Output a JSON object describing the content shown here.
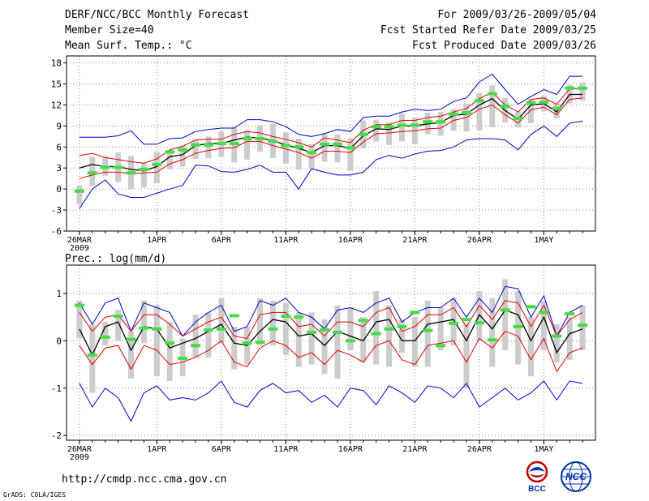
{
  "header": {
    "title": "DERF/NCC/BCC Monthly Forecast",
    "member_size": "Member Size=40",
    "variable": "Mean Surf. Temp.: °C",
    "period": "For 2009/03/26-2009/05/04",
    "refer_date": "Fcst Started Refer Date 2009/03/25",
    "produced_date": "Fcst Produced Date 2009/03/26"
  },
  "footer": {
    "url": "http://cmdp.ncc.cma.gov.cn",
    "credit": "GrADS: COLA/IGES",
    "logo_left": "BCC",
    "logo_right": "NCC"
  },
  "colors": {
    "max_min": "#0000cc",
    "mean": "#000000",
    "spread": "#e00000",
    "median": "#44dd44",
    "box": "#cccccc"
  },
  "chart_data": [
    {
      "type": "line",
      "title": "Mean Surf. Temp.: °C",
      "xlabel": "",
      "ylabel": "",
      "x": [
        1,
        2,
        3,
        4,
        5,
        6,
        7,
        8,
        9,
        10,
        11,
        12,
        13,
        14,
        15,
        16,
        17,
        18,
        19,
        20,
        21,
        22,
        23,
        24,
        25,
        26,
        27,
        28,
        29,
        30,
        31,
        32,
        33,
        34,
        35,
        36,
        37,
        38,
        39,
        40
      ],
      "xlim": [
        0,
        41
      ],
      "ylim": [
        -6,
        19
      ],
      "yticks": [
        -6,
        -3,
        0,
        3,
        6,
        9,
        12,
        15,
        18
      ],
      "tick_labels": [
        {
          "x": 1,
          "label": "26MAR"
        },
        {
          "x": 7,
          "label": "1APR"
        },
        {
          "x": 12,
          "label": "6APR"
        },
        {
          "x": 17,
          "label": "11APR"
        },
        {
          "x": 22,
          "label": "16APR"
        },
        {
          "x": 27,
          "label": "21APR"
        },
        {
          "x": 32,
          "label": "26APR"
        },
        {
          "x": 37,
          "label": "1MAY"
        }
      ],
      "year_label": "2009",
      "series": [
        {
          "name": "max",
          "color": "#0000cc",
          "values": [
            7.4,
            7.4,
            7.4,
            7.6,
            8.3,
            6.4,
            6.4,
            7.2,
            7.3,
            8.2,
            8.5,
            8.7,
            8.7,
            9.9,
            9.9,
            9.6,
            8.9,
            7.8,
            7.5,
            7.9,
            8.5,
            8.2,
            10.2,
            10.4,
            10.4,
            11.0,
            11.4,
            11.2,
            11.4,
            12.5,
            13.0,
            15.3,
            16.4,
            14.2,
            12.1,
            13.2,
            14.2,
            13.5,
            16.1,
            16.1
          ]
        },
        {
          "name": "min",
          "color": "#0000cc",
          "values": [
            -2.8,
            0.0,
            1.3,
            -0.7,
            -1.2,
            -1.2,
            -0.6,
            0.0,
            0.5,
            3.4,
            3.3,
            2.5,
            2.4,
            2.8,
            3.4,
            2.4,
            2.4,
            0.0,
            2.9,
            2.4,
            2.0,
            2.0,
            2.4,
            4.2,
            4.8,
            4.4,
            5.0,
            5.4,
            5.5,
            6.0,
            7.0,
            7.2,
            7.2,
            7.0,
            5.6,
            7.8,
            9.0,
            7.5,
            9.4,
            9.7
          ]
        },
        {
          "name": "mean_plus_std",
          "color": "#e00000",
          "values": [
            4.8,
            5.1,
            4.5,
            4.2,
            3.9,
            3.7,
            4.3,
            5.6,
            6.1,
            7.0,
            7.1,
            7.1,
            7.8,
            8.2,
            8.0,
            7.5,
            7.1,
            6.6,
            6.0,
            7.3,
            7.0,
            6.6,
            8.4,
            9.2,
            9.2,
            9.8,
            9.8,
            10.2,
            10.4,
            11.0,
            11.5,
            12.9,
            13.8,
            12.0,
            11.0,
            12.8,
            13.0,
            12.1,
            14.3,
            14.4
          ]
        },
        {
          "name": "mean",
          "color": "#000000",
          "values": [
            3.0,
            3.5,
            3.2,
            3.2,
            2.8,
            2.6,
            3.2,
            4.6,
            4.9,
            6.2,
            6.5,
            6.5,
            7.0,
            7.4,
            7.3,
            6.9,
            6.3,
            5.8,
            5.2,
            6.2,
            6.2,
            5.8,
            7.6,
            8.6,
            8.5,
            9.0,
            9.0,
            9.3,
            9.5,
            10.5,
            10.7,
            12.0,
            12.9,
            11.2,
            10.0,
            12.0,
            12.2,
            11.0,
            13.5,
            13.5
          ]
        },
        {
          "name": "mean_minus_std",
          "color": "#e00000",
          "values": [
            1.5,
            2.0,
            2.4,
            2.4,
            2.2,
            2.3,
            2.4,
            3.6,
            4.2,
            5.1,
            5.5,
            5.8,
            5.9,
            6.8,
            6.8,
            6.2,
            5.7,
            5.2,
            4.4,
            5.4,
            5.4,
            5.2,
            6.7,
            7.9,
            8.0,
            8.2,
            8.3,
            8.6,
            8.7,
            9.8,
            10.2,
            11.4,
            12.0,
            10.6,
            9.4,
            11.3,
            11.7,
            10.6,
            12.8,
            13.0
          ]
        }
      ],
      "boxes": {
        "color": "#cccccc",
        "low": [
          -2.2,
          0.4,
          1.9,
          1.0,
          0.0,
          0.2,
          0.8,
          2.8,
          3.2,
          4.3,
          4.4,
          4.6,
          3.8,
          4.2,
          5.3,
          4.4,
          3.6,
          2.8,
          3.0,
          3.9,
          3.8,
          2.6,
          5.8,
          6.8,
          6.3,
          6.8,
          6.4,
          7.8,
          7.6,
          8.3,
          8.2,
          8.4,
          8.8,
          9.5,
          8.8,
          9.4,
          11.1,
          10.1,
          12.2,
          12.6
        ],
        "high": [
          0.5,
          4.6,
          4.6,
          5.2,
          4.7,
          3.7,
          5.3,
          5.6,
          6.2,
          7.0,
          7.5,
          8.2,
          8.8,
          8.4,
          9.1,
          9.3,
          8.1,
          7.2,
          6.4,
          7.9,
          7.8,
          7.2,
          9.8,
          9.9,
          9.5,
          10.8,
          10.2,
          10.9,
          11.0,
          11.4,
          12.2,
          13.7,
          14.8,
          13.0,
          11.0,
          12.8,
          13.3,
          12.2,
          14.9,
          15.2
        ]
      },
      "median": {
        "color": "#44dd44",
        "values": [
          -0.3,
          2.3,
          3.1,
          3.1,
          2.3,
          2.8,
          3.5,
          5.3,
          5.6,
          6.3,
          6.3,
          6.5,
          6.5,
          7.2,
          7.2,
          6.8,
          6.2,
          6.0,
          5.2,
          6.4,
          6.4,
          5.9,
          7.8,
          8.9,
          8.9,
          9.1,
          9.1,
          9.6,
          9.6,
          10.7,
          10.9,
          12.6,
          13.6,
          11.8,
          10.1,
          12.3,
          12.4,
          11.5,
          14.4,
          14.4
        ]
      }
    },
    {
      "type": "line",
      "title": "Prec.: log(mm/d)",
      "xlabel": "",
      "ylabel": "",
      "x": [
        1,
        2,
        3,
        4,
        5,
        6,
        7,
        8,
        9,
        10,
        11,
        12,
        13,
        14,
        15,
        16,
        17,
        18,
        19,
        20,
        21,
        22,
        23,
        24,
        25,
        26,
        27,
        28,
        29,
        30,
        31,
        32,
        33,
        34,
        35,
        36,
        37,
        38,
        39,
        40
      ],
      "xlim": [
        0,
        41
      ],
      "ylim": [
        -2.1,
        1.6
      ],
      "yticks": [
        -2,
        -1,
        0,
        1
      ],
      "tick_labels": [
        {
          "x": 1,
          "label": "26MAR"
        },
        {
          "x": 7,
          "label": "1APR"
        },
        {
          "x": 12,
          "label": "6APR"
        },
        {
          "x": 17,
          "label": "11APR"
        },
        {
          "x": 22,
          "label": "16APR"
        },
        {
          "x": 27,
          "label": "21APR"
        },
        {
          "x": 32,
          "label": "26APR"
        },
        {
          "x": 37,
          "label": "1MAY"
        }
      ],
      "year_label": "2009",
      "series": [
        {
          "name": "max",
          "color": "#0000cc",
          "values": [
            0.8,
            0.35,
            0.8,
            0.9,
            0.2,
            0.8,
            0.7,
            0.6,
            0.1,
            0.4,
            0.6,
            0.75,
            0.2,
            0.3,
            0.85,
            0.75,
            0.9,
            0.6,
            0.5,
            0.25,
            0.65,
            0.7,
            0.6,
            0.8,
            0.9,
            0.4,
            0.6,
            0.7,
            0.7,
            0.9,
            0.5,
            0.9,
            0.6,
            1.15,
            1.1,
            0.5,
            0.95,
            0.1,
            0.6,
            0.75
          ]
        },
        {
          "name": "min",
          "color": "#0000cc",
          "values": [
            -0.9,
            -1.4,
            -1.0,
            -1.2,
            -1.7,
            -1.1,
            -0.95,
            -1.25,
            -1.2,
            -1.25,
            -1.1,
            -0.85,
            -1.3,
            -1.4,
            -1.05,
            -0.9,
            -1.1,
            -1.05,
            -1.3,
            -1.15,
            -1.4,
            -1.0,
            -1.05,
            -1.35,
            -0.95,
            -1.1,
            -1.3,
            -0.95,
            -1.0,
            -1.2,
            -0.9,
            -1.4,
            -1.2,
            -1.0,
            -1.25,
            -1.1,
            -0.85,
            -1.25,
            -0.85,
            -0.9
          ]
        },
        {
          "name": "mean_plus_std",
          "color": "#e00000",
          "values": [
            0.6,
            0.2,
            0.5,
            0.55,
            0.2,
            0.55,
            0.55,
            0.35,
            0.1,
            0.25,
            0.4,
            0.5,
            0.1,
            0.05,
            0.55,
            0.6,
            0.6,
            0.3,
            0.35,
            0.1,
            0.4,
            0.4,
            0.3,
            0.6,
            0.7,
            0.2,
            0.3,
            0.55,
            0.55,
            0.7,
            0.3,
            0.75,
            0.45,
            0.85,
            0.8,
            0.3,
            0.75,
            0.1,
            0.45,
            0.6
          ]
        },
        {
          "name": "mean",
          "color": "#000000",
          "values": [
            0.25,
            -0.3,
            0.3,
            0.4,
            -0.2,
            0.3,
            0.25,
            -0.15,
            -0.05,
            0.05,
            0.2,
            0.35,
            -0.05,
            -0.1,
            0.2,
            0.45,
            0.4,
            0.1,
            0.15,
            -0.1,
            0.2,
            0.1,
            0.0,
            0.4,
            0.45,
            0.0,
            0.0,
            0.35,
            0.4,
            0.45,
            0.0,
            0.55,
            0.25,
            0.65,
            0.55,
            0.0,
            0.5,
            -0.25,
            0.15,
            0.25
          ]
        },
        {
          "name": "mean_minus_std",
          "color": "#e00000",
          "values": [
            -0.1,
            -0.5,
            -0.15,
            -0.1,
            -0.6,
            -0.1,
            -0.2,
            -0.5,
            -0.45,
            -0.35,
            -0.2,
            0.0,
            -0.45,
            -0.55,
            -0.15,
            0.0,
            -0.1,
            -0.35,
            -0.25,
            -0.5,
            -0.2,
            -0.3,
            -0.45,
            -0.1,
            0.0,
            -0.4,
            -0.5,
            -0.1,
            -0.05,
            0.0,
            -0.45,
            0.05,
            -0.15,
            0.2,
            0.1,
            -0.4,
            0.05,
            -0.65,
            -0.25,
            -0.15
          ]
        }
      ],
      "boxes": {
        "color": "#cccccc",
        "low": [
          0.05,
          -1.1,
          -0.1,
          0.0,
          -0.8,
          -0.05,
          -0.75,
          -0.85,
          -0.75,
          -0.35,
          -0.35,
          -0.05,
          -0.6,
          -0.5,
          -0.1,
          -0.1,
          -0.3,
          -0.55,
          -0.5,
          -0.7,
          -0.8,
          -0.2,
          -0.45,
          -0.5,
          -0.55,
          -0.25,
          -0.55,
          -0.55,
          -0.2,
          -0.1,
          -1.0,
          0.0,
          -0.55,
          -0.2,
          -0.5,
          -0.75,
          -0.2,
          -0.45,
          -0.4,
          -0.2
        ],
        "high": [
          0.85,
          0.35,
          0.4,
          0.65,
          0.2,
          0.85,
          0.75,
          0.4,
          0.05,
          0.55,
          0.6,
          0.9,
          0.3,
          0.3,
          0.9,
          0.85,
          0.8,
          0.6,
          0.6,
          0.45,
          0.75,
          0.7,
          0.5,
          1.05,
          0.75,
          0.45,
          0.5,
          0.85,
          0.7,
          0.9,
          0.35,
          1.05,
          0.9,
          1.3,
          1.05,
          0.5,
          0.85,
          0.35,
          0.5,
          0.75
        ]
      },
      "median": {
        "color": "#44dd44",
        "values": [
          0.75,
          -0.3,
          0.08,
          0.52,
          0.03,
          0.27,
          0.25,
          -0.05,
          -0.37,
          -0.1,
          0.23,
          0.25,
          0.53,
          -0.05,
          -0.03,
          0.25,
          0.52,
          0.5,
          0.18,
          0.23,
          0.18,
          0.0,
          0.43,
          0.15,
          0.25,
          0.3,
          0.6,
          0.22,
          -0.1,
          0.37,
          0.45,
          0.38,
          0.02,
          0.65,
          0.3,
          0.72,
          0.6,
          0.1,
          0.57,
          0.33
        ]
      }
    }
  ]
}
